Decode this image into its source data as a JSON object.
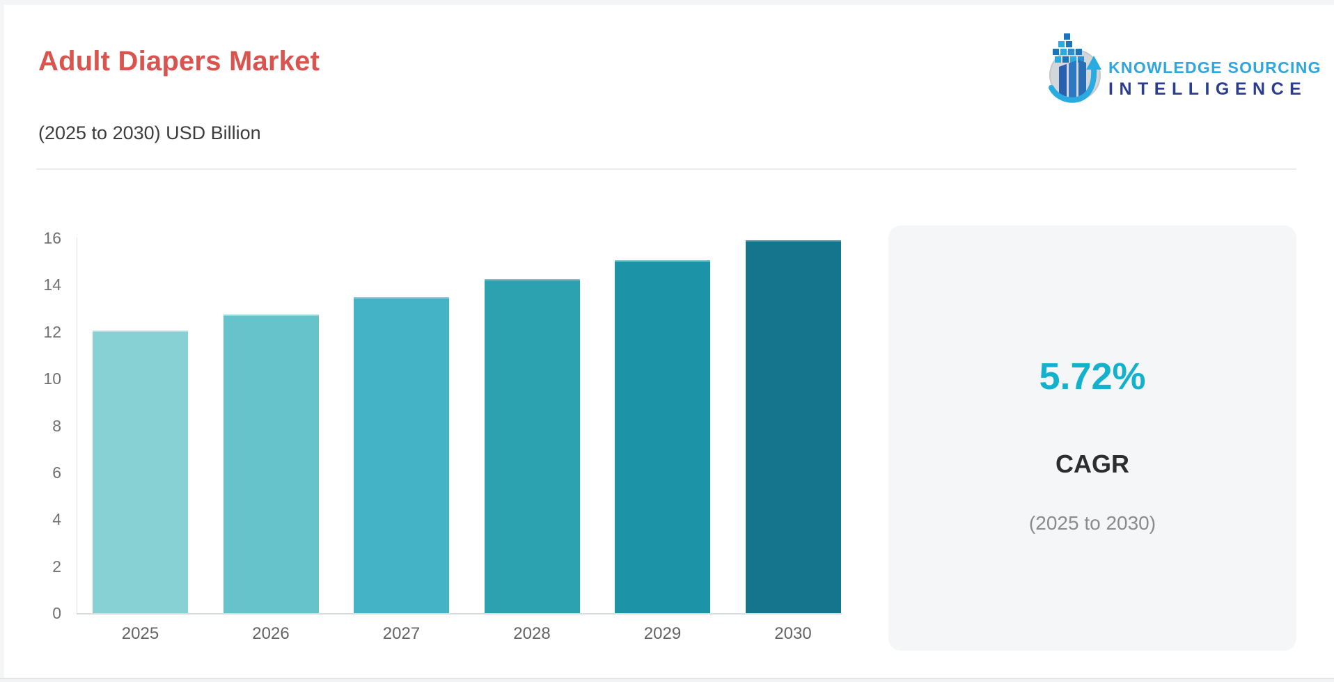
{
  "header": {
    "title": "Adult Diapers Market",
    "subtitle": "(2025 to 2030) USD Billion",
    "title_color": "#d9534f"
  },
  "logo": {
    "line1": "KNOWLEDGE SOURCING",
    "line2": "INTELLIGENCE",
    "line1_color": "#2fa6de",
    "line2_color": "#2b3d8f",
    "icon": "bar-chart-globe-arrow-logo-icon"
  },
  "chart_data": {
    "type": "bar",
    "title": "Adult Diapers Market (2025 to 2030) USD Billion",
    "categories": [
      "2025",
      "2026",
      "2027",
      "2028",
      "2029",
      "2030"
    ],
    "values": [
      12.05,
      12.74,
      13.47,
      14.24,
      15.05,
      15.92
    ],
    "unit": "USD Billion",
    "xlabel": "",
    "ylabel": "",
    "ylim": [
      0,
      16
    ],
    "yticks": [
      0,
      2,
      4,
      6,
      8,
      10,
      12,
      14,
      16
    ],
    "grid": false,
    "legend": "none",
    "bar_colors": [
      "#87d1d4",
      "#66c3cc",
      "#44b3c6",
      "#2ca2b1",
      "#1d93a8",
      "#14758d"
    ]
  },
  "cagr_card": {
    "value": "5.72%",
    "label": "CAGR",
    "period": "(2025 to 2030)",
    "value_color": "#13b1cb",
    "background": "#f4f6f8"
  }
}
